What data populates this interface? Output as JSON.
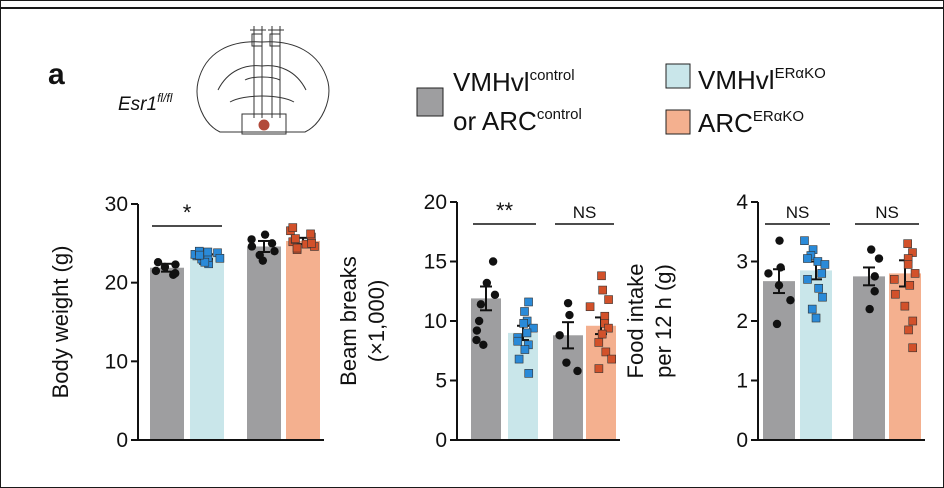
{
  "figure": {
    "panel_label": "a",
    "genotype": {
      "base": "Esr1",
      "sup": "fl/fl"
    },
    "legend": [
      {
        "line1": "VMHvl",
        "line1_sup": "control",
        "line2": "or ARC",
        "line2_sup": "control",
        "color": "#9e9ea0"
      },
      {
        "line1": "VMHvl",
        "line1_sup": "ERαKO",
        "color": "#c9e6ea"
      },
      {
        "line1": "ARC",
        "line1_sup": "ERαKO",
        "color": "#f4b08f"
      }
    ],
    "groups": [
      "VMHvl control",
      "VMHvl ERαKO",
      "ARC control",
      "ARC ERαKO"
    ]
  },
  "chart_data": [
    {
      "type": "bar",
      "ylabel": "Body weight (g)",
      "ylabel_lines": [
        "Body weight (g)"
      ],
      "ylim": [
        0,
        30
      ],
      "yticks": [
        "0",
        "10",
        "20",
        "30"
      ],
      "ytick_values": [
        0,
        10,
        20,
        30
      ],
      "categories": [
        "VMHvl control",
        "VMHvl ERαKO",
        "ARC control",
        "ARC ERαKO"
      ],
      "values": [
        21.9,
        23.3,
        24.6,
        25.3
      ],
      "errors": [
        0.5,
        0.3,
        0.7,
        0.4
      ],
      "points": [
        [
          21.0,
          21.5,
          22.0,
          22.3,
          22.6,
          21.2
        ],
        [
          22.4,
          22.8,
          23.0,
          23.2,
          23.4,
          23.6,
          23.8,
          24.0,
          22.6,
          23.1,
          23.5,
          23.9
        ],
        [
          22.8,
          23.5,
          24.0,
          24.6,
          25.0,
          25.5,
          26.1
        ],
        [
          24.2,
          24.6,
          24.9,
          25.2,
          25.5,
          25.8,
          26.2,
          26.6,
          27.0,
          24.4,
          25.0,
          25.6
        ]
      ],
      "significance": [
        {
          "between": [
            0,
            1
          ],
          "label": "*"
        }
      ]
    },
    {
      "type": "bar",
      "ylabel": "Beam breaks (×1,000)",
      "ylabel_lines": [
        "Beam breaks",
        "(×1,000)"
      ],
      "ylim": [
        0,
        20
      ],
      "yticks": [
        "0",
        "5",
        "10",
        "15",
        "20"
      ],
      "ytick_values": [
        0,
        5,
        10,
        15,
        20
      ],
      "categories": [
        "VMHvl control",
        "VMHvl ERαKO",
        "ARC control",
        "ARC ERαKO"
      ],
      "values": [
        11.9,
        9.0,
        8.8,
        9.6
      ],
      "errors": [
        1.0,
        0.6,
        1.1,
        0.7
      ],
      "points": [
        [
          15.0,
          13.2,
          12.2,
          11.4,
          10.0,
          9.2,
          8.0,
          8.4
        ],
        [
          11.6,
          10.8,
          10.0,
          9.4,
          9.0,
          8.6,
          8.0,
          7.6,
          6.8,
          5.6,
          9.8,
          8.3
        ],
        [
          11.5,
          10.5,
          8.8,
          6.5,
          5.8
        ],
        [
          13.8,
          12.6,
          11.8,
          11.2,
          10.4,
          9.8,
          9.4,
          8.9,
          8.2,
          7.4,
          6.8,
          6.0
        ]
      ],
      "significance": [
        {
          "between": [
            0,
            1
          ],
          "label": "**"
        },
        {
          "between": [
            2,
            3
          ],
          "label": "NS"
        }
      ]
    },
    {
      "type": "bar",
      "ylabel": "Food intake per 12 h (g)",
      "ylabel_lines": [
        "Food intake",
        "per 12 h (g)"
      ],
      "ylim": [
        0,
        4
      ],
      "yticks": [
        "0",
        "1",
        "2",
        "3",
        "4"
      ],
      "ytick_values": [
        0,
        1,
        2,
        3,
        4
      ],
      "categories": [
        "VMHvl control",
        "VMHvl ERαKO",
        "ARC control",
        "ARC ERαKO"
      ],
      "values": [
        2.67,
        2.85,
        2.75,
        2.8
      ],
      "errors": [
        0.2,
        0.15,
        0.15,
        0.22
      ],
      "points": [
        [
          3.35,
          2.9,
          2.8,
          2.6,
          2.35,
          1.95
        ],
        [
          3.35,
          3.2,
          3.1,
          3.0,
          2.95,
          2.8,
          2.7,
          2.55,
          2.4,
          2.2,
          2.05,
          3.05
        ],
        [
          3.2,
          3.05,
          2.75,
          2.5,
          2.2
        ],
        [
          3.3,
          3.15,
          3.05,
          2.95,
          2.8,
          2.6,
          2.45,
          2.25,
          2.0,
          1.85,
          1.55,
          2.7
        ]
      ],
      "significance": [
        {
          "between": [
            0,
            1
          ],
          "label": "NS"
        },
        {
          "between": [
            2,
            3
          ],
          "label": "NS"
        }
      ]
    }
  ],
  "style": {
    "bar_colors": [
      "#9e9ea0",
      "#c9e6ea",
      "#9e9ea0",
      "#f4b08f"
    ],
    "point_colors": [
      "#111111",
      "#2a8ad8",
      "#111111",
      "#d2512a"
    ],
    "point_shapes": [
      "circle",
      "square",
      "circle",
      "square"
    ],
    "axis_color": "#111111"
  }
}
